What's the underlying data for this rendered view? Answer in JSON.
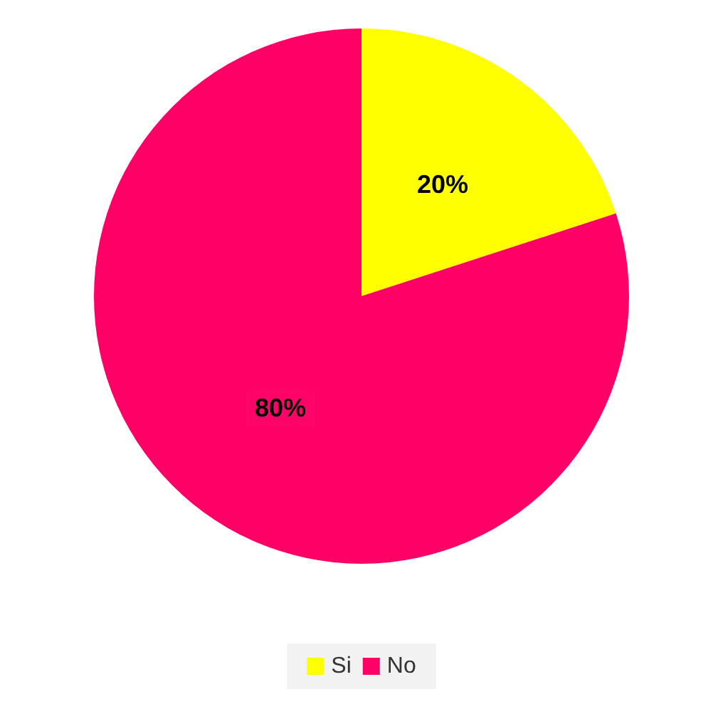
{
  "chart_data": {
    "type": "pie",
    "categories": [
      "Si",
      "No"
    ],
    "values": [
      20,
      80
    ],
    "colors": [
      "#ffff00",
      "#ff0066"
    ],
    "value_labels": [
      "20%",
      "80%"
    ],
    "legend": "bottom"
  }
}
